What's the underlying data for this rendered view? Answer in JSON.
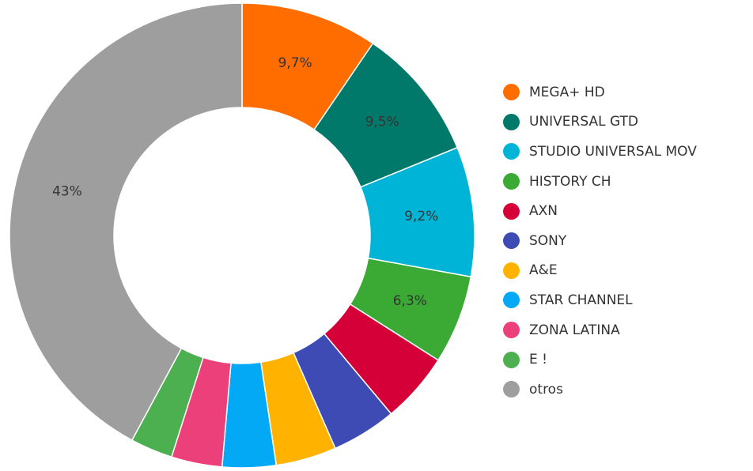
{
  "chart_data": {
    "type": "pie",
    "title": "",
    "legend_position": "right",
    "slices": [
      {
        "name": "MEGA+ HD",
        "value": 9.7,
        "label": "9,7%",
        "color": "#ff6d00"
      },
      {
        "name": "UNIVERSAL GTD",
        "value": 9.5,
        "label": "9,5%",
        "color": "#00796b"
      },
      {
        "name": "STUDIO UNIVERSAL MOV",
        "value": 9.2,
        "label": "9,2%",
        "color": "#00b4d8"
      },
      {
        "name": "HISTORY CH",
        "value": 6.3,
        "label": "6,3%",
        "color": "#3aaa35"
      },
      {
        "name": "AXN",
        "value": 5.0,
        "label": "",
        "color": "#d50037"
      },
      {
        "name": "SONY",
        "value": 4.6,
        "label": "",
        "color": "#3f4bb5"
      },
      {
        "name": "A&E",
        "value": 4.3,
        "label": "",
        "color": "#ffb300"
      },
      {
        "name": "STAR CHANNEL",
        "value": 3.8,
        "label": "",
        "color": "#03a9f4"
      },
      {
        "name": "ZONA LATINA",
        "value": 3.6,
        "label": "",
        "color": "#ec407a"
      },
      {
        "name": "E !",
        "value": 3.0,
        "label": "",
        "color": "#4caf50"
      },
      {
        "name": "otros",
        "value": 43,
        "label": "43%",
        "color": "#9e9e9e"
      }
    ]
  }
}
